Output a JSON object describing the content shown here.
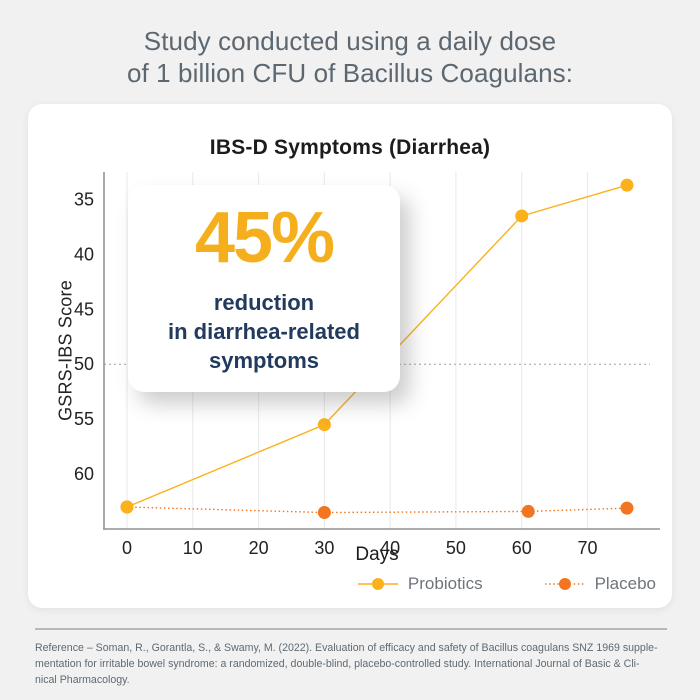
{
  "header": {
    "line1": "Study conducted using a daily dose",
    "line2": "of 1 billion CFU of Bacillus Coagulans:"
  },
  "callout": {
    "value": "45%",
    "line1": "reduction",
    "line2": "in diarrhea-related",
    "line3": "symptoms"
  },
  "chart_data": {
    "type": "line",
    "title": "IBS-D Symptoms (Diarrhea)",
    "xlabel": "Days",
    "ylabel": "GSRS-IBS Score",
    "x_ticks": [
      0,
      10,
      20,
      30,
      40,
      50,
      60,
      70
    ],
    "y_ticks": [
      35,
      40,
      45,
      50,
      55,
      60
    ],
    "xlim": [
      -3.5,
      79.5
    ],
    "ylim": [
      32.5,
      65
    ],
    "y_axis_inverted": true,
    "grid": "vertical-only",
    "reference_line_y": 50,
    "legend_position": "bottom-right",
    "series": [
      {
        "name": "Probiotics",
        "style": "solid",
        "color": "#FBB11C",
        "x": [
          0,
          30,
          60,
          76
        ],
        "y": [
          63.0,
          55.5,
          36.5,
          33.7
        ]
      },
      {
        "name": "Placebo",
        "style": "dotted",
        "color": "#F4751F",
        "x": [
          0,
          30,
          61,
          76
        ],
        "y": [
          63.0,
          63.5,
          63.4,
          63.1
        ]
      }
    ]
  },
  "footer": {
    "lines": [
      "Reference – Soman, R., Gorantla, S., & Swamy, M. (2022). Evaluation of efficacy and safety of Bacillus coagulans SNZ 1969 supple-",
      "mentation for irritable bowel syndrome: a randomized, double-blind, placebo-controlled study. International Journal of Basic & Cli-",
      "nical Pharmacology."
    ]
  },
  "colors": {
    "page_bg": "#f1f1f2",
    "card_bg": "#ffffff",
    "header_text": "#5c6770",
    "probiotics_yellow": "#FBB11C",
    "placebo_orange": "#F4751F",
    "callout_gold": "#f5af1d",
    "callout_navy": "#223a5e",
    "gridline": "#ececec",
    "axis_spine": "#8f9397",
    "reference_dash": "#9aa0a6",
    "tick_text": "#222222",
    "legend_text": "#6e757c",
    "footer_text": "#5e6a72"
  }
}
